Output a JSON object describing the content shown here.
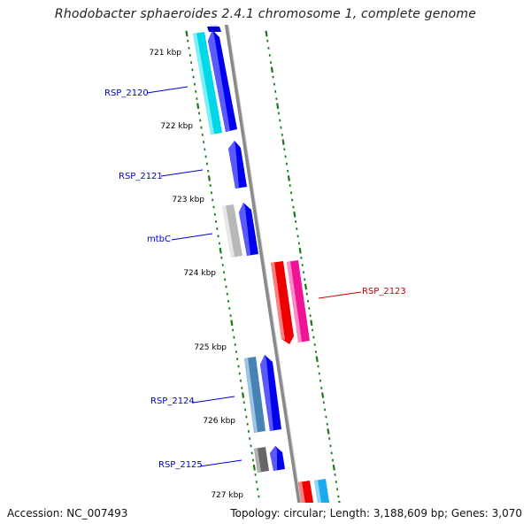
{
  "title": "Rhodobacter sphaeroides 2.4.1 chromosome 1, complete genome",
  "footer": {
    "accession": "Accession: NC_007493",
    "summary": "Topology: circular; Length: 3,188,609 bp; Genes: 3,070"
  },
  "ticks": [
    "721 kbp",
    "722 kbp",
    "723 kbp",
    "724 kbp",
    "725 kbp",
    "726 kbp",
    "727 kbp"
  ],
  "gene_labels": [
    {
      "id": "rsp2120",
      "text": "RSP_2120",
      "color": "#0000cc"
    },
    {
      "id": "rsp2121",
      "text": "RSP_2121",
      "color": "#0000cc"
    },
    {
      "id": "mtbc",
      "text": "mtbC",
      "color": "#0000cc"
    },
    {
      "id": "rsp2123",
      "text": "RSP_2123",
      "color": "#cc0000"
    },
    {
      "id": "rsp2124",
      "text": "RSP_2124",
      "color": "#0000cc"
    },
    {
      "id": "rsp2125",
      "text": "RSP_2125",
      "color": "#0000cc"
    }
  ],
  "colors": {
    "backbone": "#8a8a8a",
    "tick": "#1a7a1a",
    "forward_cds": "#0000ee",
    "reverse_cds": "#ee0000",
    "cyan": "#00d8e8",
    "gray": "#b8b8b8",
    "steelblue": "#4682b4",
    "darkgray": "#666666",
    "magenta": "#ee1493",
    "skyblue": "#1eaaee"
  }
}
